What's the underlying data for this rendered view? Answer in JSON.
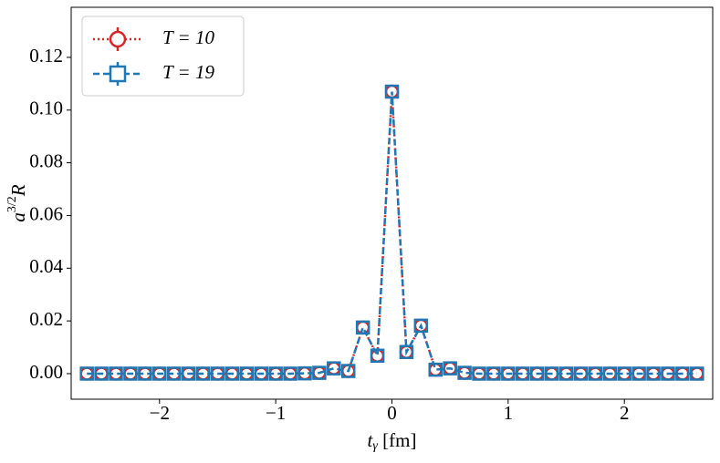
{
  "chart_data": {
    "type": "line",
    "xlabel": [
      "t",
      "γ",
      " [fm]"
    ],
    "ylabel": [
      "a",
      "3/2",
      "R"
    ],
    "x": [
      -2.625,
      -2.5,
      -2.375,
      -2.25,
      -2.125,
      -2.0,
      -1.875,
      -1.75,
      -1.625,
      -1.5,
      -1.375,
      -1.25,
      -1.125,
      -1.0,
      -0.875,
      -0.75,
      -0.625,
      -0.5,
      -0.375,
      -0.25,
      -0.125,
      0,
      0.125,
      0.25,
      0.375,
      0.5,
      0.625,
      0.75,
      0.875,
      1.0,
      1.125,
      1.25,
      1.375,
      1.5,
      1.625,
      1.75,
      1.875,
      2.0,
      2.125,
      2.25,
      2.375,
      2.5,
      2.625
    ],
    "series": [
      {
        "name": "T = 10",
        "color": "#d62728",
        "marker": "circle",
        "dash": "dotted",
        "values": [
          0,
          0,
          0,
          0,
          0,
          0,
          0,
          0,
          0,
          0,
          0,
          0,
          0,
          0,
          0,
          0.0001,
          0.0003,
          0.002,
          0.001,
          0.0175,
          0.0068,
          0.107,
          0.0082,
          0.0182,
          0.0015,
          0.002,
          0.0003,
          0,
          0,
          0,
          0,
          0,
          0,
          0,
          0,
          0,
          0,
          0,
          0,
          0,
          0,
          0,
          0
        ]
      },
      {
        "name": "T = 19",
        "color": "#1f77b4",
        "marker": "square",
        "dash": "dashed",
        "values": [
          0,
          0,
          0,
          0,
          0,
          0,
          0,
          0,
          0,
          0,
          0,
          0,
          0,
          0,
          0,
          0.0001,
          0.0003,
          0.002,
          0.001,
          0.0175,
          0.0068,
          0.107,
          0.0082,
          0.0182,
          0.0015,
          0.002,
          0.0003,
          0,
          0,
          0,
          0,
          0,
          0,
          0,
          0,
          0,
          0,
          0,
          0,
          0,
          0,
          0,
          0
        ]
      }
    ],
    "xlim": [
      -2.76,
      2.76
    ],
    "ylim": [
      -0.0097,
      0.139
    ],
    "xticks": [
      {
        "value": -2,
        "label": "−2"
      },
      {
        "value": -1,
        "label": "−1"
      },
      0,
      1,
      2
    ],
    "yticks": [
      {
        "value": 0,
        "label": "0.00"
      },
      {
        "value": 0.02,
        "label": "0.02"
      },
      {
        "value": 0.04,
        "label": "0.04"
      },
      {
        "value": 0.06,
        "label": "0.06"
      },
      {
        "value": 0.08,
        "label": "0.08"
      },
      {
        "value": 0.1,
        "label": "0.10"
      },
      {
        "value": 0.12,
        "label": "0.12"
      }
    ],
    "legend": "upper-left"
  }
}
